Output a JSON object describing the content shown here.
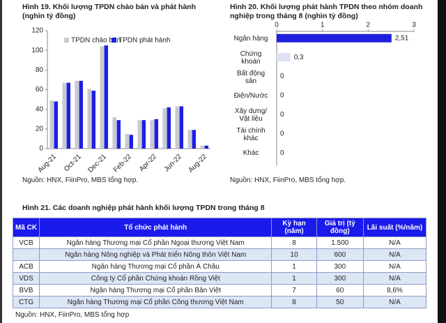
{
  "chart_data": [
    {
      "type": "bar",
      "title": "Hình 19. Khối lượng TPDN chào bán và phát hành (nghìn tỷ đồng)",
      "categories": [
        "Aug-21",
        null,
        "Oct-21",
        null,
        "Dec-21",
        null,
        "Feb-22",
        null,
        "Apr-22",
        null,
        "Jun-22",
        null,
        "Aug-22"
      ],
      "series": [
        {
          "name": "TPDN chào bán",
          "color": "#c8cad0",
          "values": [
            49,
            67,
            69,
            61,
            104,
            32,
            15,
            29,
            29,
            41,
            43,
            19,
            3
          ]
        },
        {
          "name": "TPDN phát hành",
          "color": "#1f1fe0",
          "values": [
            48,
            67,
            69,
            59,
            105,
            29,
            14,
            29,
            30,
            42,
            43,
            19,
            3
          ]
        }
      ],
      "ylim": [
        0,
        120
      ],
      "yticks": [
        0,
        20,
        40,
        60,
        80,
        100,
        120
      ],
      "legend": "top-left",
      "source": "Nguồn: HNX, FiinPro, MBS tổng hợp."
    },
    {
      "type": "hbar",
      "title": "Hình 20. Khối lượng phát hành TPDN theo nhóm doanh nghiệp trong tháng 8 (nghìn tỷ đồng)",
      "categories": [
        "Ngân hàng",
        "Chứng khoán",
        "Bất động sản",
        "Điện/Nước",
        "Xây dựng/ Vật liệu",
        "Tài chính khác",
        "Khác"
      ],
      "values": [
        2.51,
        0.3,
        0,
        0,
        0,
        0,
        0
      ],
      "value_labels": [
        "2,51",
        "0,3",
        "0",
        "0",
        "0",
        "0",
        "0"
      ],
      "colors": [
        "#1f1fe0",
        "#dde3f5",
        "#dde3f5",
        "#dde3f5",
        "#dde3f5",
        "#dde3f5",
        "#dde3f5"
      ],
      "xlim": [
        0,
        3
      ],
      "xticks": [
        0,
        1,
        2,
        3
      ],
      "source": "Nguồn: HNX, FiinPro, MBS tổng hợp."
    }
  ],
  "table": {
    "title": "Hình 21. Các doanh nghiệp phát hành khối lượng TPDN trong tháng 8",
    "header": [
      "Mã CK",
      "Tổ chức phát hành",
      "Kỳ hạn (năm)",
      "Giá trị (tỷ đồng)",
      "Lãi suất (%/năm)"
    ],
    "rows": [
      [
        "VCB",
        "Ngân hàng Thương mại Cổ phần Ngoại thương Việt Nam",
        "8",
        "1.500",
        "N/A"
      ],
      [
        null,
        "Ngân hàng Nông nghiệp và Phát triển Nông thôn Việt Nam",
        "10",
        "600",
        "N/A"
      ],
      [
        "ACB",
        "Ngân hàng Thương mại Cổ phần Á Châu",
        "1",
        "300",
        "N/A"
      ],
      [
        "VDS",
        "Công ty Cổ phần Chứng khoán Rồng Việt",
        "1",
        "300",
        "N/A"
      ],
      [
        "BVB",
        "Ngân hàng Thương mại Cổ phần Bản Việt",
        "7",
        "60",
        "8,6%"
      ],
      [
        "CTG",
        "Ngân hàng Thương mại Cổ phần Công thương Việt Nam",
        "8",
        "50",
        "N/A"
      ]
    ],
    "source": "Nguồn: HNX, FiinPro, MBS tổng hợp"
  }
}
